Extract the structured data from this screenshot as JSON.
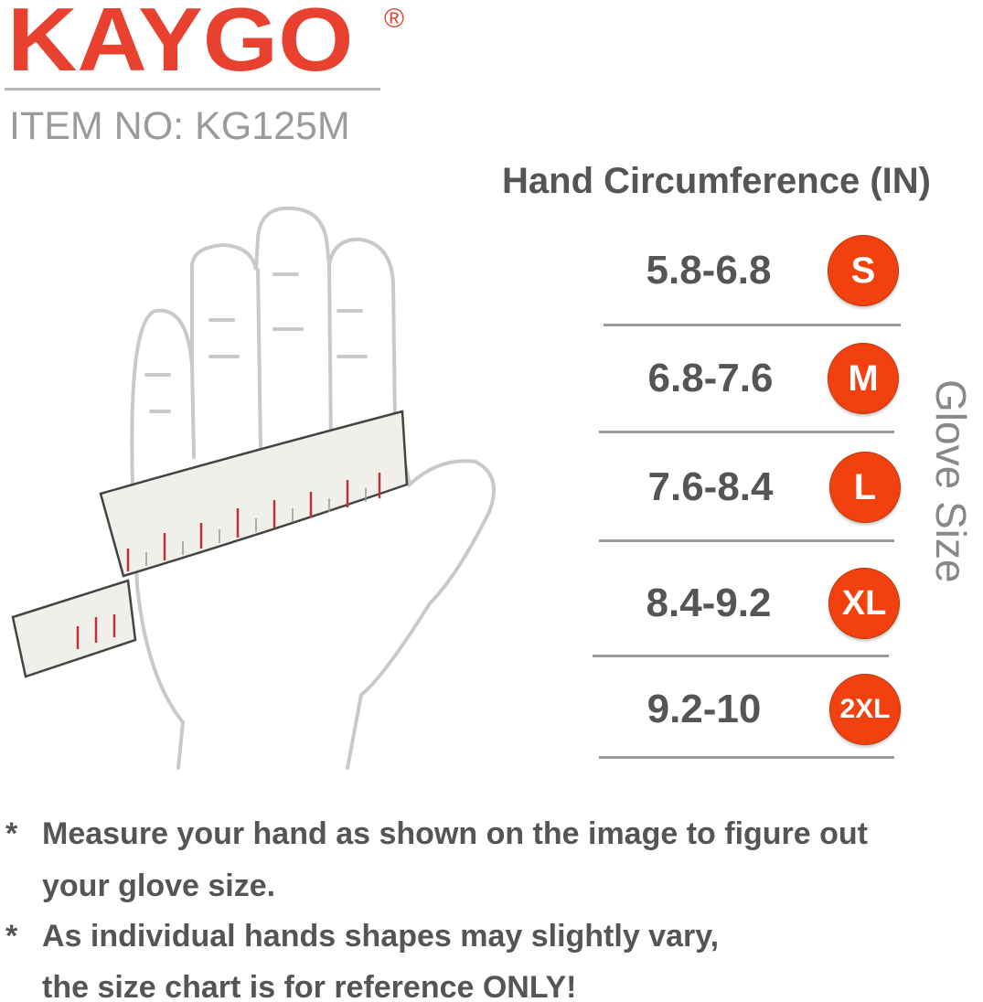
{
  "brand": {
    "logo": "KAYGO",
    "registered": "®",
    "color": "#e8412f"
  },
  "item_no": "ITEM NO: KG125M",
  "chart": {
    "title": "Hand Circumference (IN)",
    "side_label": "Glove Size",
    "badge_color": "#f2410e",
    "rows": [
      {
        "range": "5.8-6.8",
        "size": "S"
      },
      {
        "range": "6.8-7.6",
        "size": "M"
      },
      {
        "range": "7.6-8.4",
        "size": "L"
      },
      {
        "range": "8.4-9.2",
        "size": "XL"
      },
      {
        "range": "9.2-10",
        "size": "2XL"
      }
    ]
  },
  "notes": {
    "bullet": "*",
    "lines": [
      "Measure your hand as shown on the image to figure out",
      "your glove size.",
      "As individual hands shapes may slightly vary,",
      "the size chart is for reference ONLY!"
    ]
  }
}
